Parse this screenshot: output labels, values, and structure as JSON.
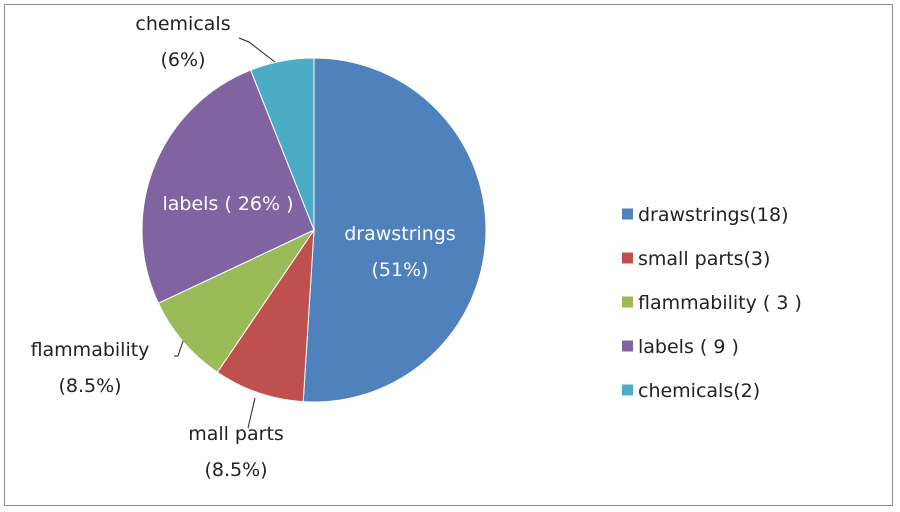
{
  "chart_data": {
    "type": "pie",
    "slices": [
      {
        "key": "drawstrings",
        "value": 51,
        "color": "#4f81bd",
        "label": [
          "drawstrings",
          "(51%)"
        ],
        "legend": "drawstrings(18)"
      },
      {
        "key": "small-parts",
        "value": 8.5,
        "color": "#c0504d",
        "label": [
          "mall parts",
          "(8.5%)"
        ],
        "legend": "small parts(3)"
      },
      {
        "key": "flammability",
        "value": 8.5,
        "color": "#9bbb59",
        "label": [
          "flammability",
          "(8.5%)"
        ],
        "legend": "flammability ( 3 )"
      },
      {
        "key": "labels",
        "value": 26,
        "color": "#8064a2",
        "label": [
          "labels ( 26% )"
        ],
        "legend": "labels ( 9 )"
      },
      {
        "key": "chemicals",
        "value": 6,
        "color": "#4bacc6",
        "label": [
          "chemicals",
          "(6%)"
        ],
        "legend": "chemicals(2)"
      }
    ],
    "start_angle_deg": 0,
    "direction": "clockwise",
    "legend_position": "right"
  }
}
